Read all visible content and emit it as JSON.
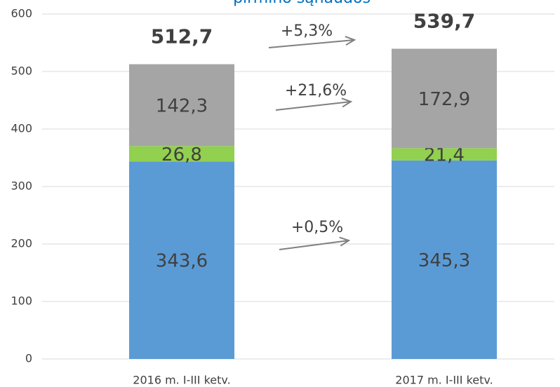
{
  "chart_data": {
    "type": "stacked_bar",
    "title": "pirmino sąnaudos",
    "categories": [
      "2016 m. I-III ketv.",
      "2017 m. I-III ketv."
    ],
    "series": [
      {
        "name": "blue",
        "color": "#5b9bd5",
        "values": [
          343.6,
          345.3
        ],
        "value_labels": [
          "343,6",
          "345,3"
        ]
      },
      {
        "name": "green",
        "color": "#92d050",
        "values": [
          26.8,
          21.4
        ],
        "value_labels": [
          "26,8",
          "21,4"
        ]
      },
      {
        "name": "gray",
        "color": "#a5a5a5",
        "values": [
          142.3,
          172.9
        ],
        "value_labels": [
          "142,3",
          "172,9"
        ]
      }
    ],
    "totals": [
      512.7,
      539.7
    ],
    "total_labels": [
      "512,7",
      "539,7"
    ],
    "annotations": [
      "+5,3%",
      "+21,6%",
      "+0,5%"
    ],
    "ylim": [
      0,
      600
    ],
    "yticks": [
      0,
      100,
      200,
      300,
      400,
      500,
      600
    ],
    "grid": true
  }
}
